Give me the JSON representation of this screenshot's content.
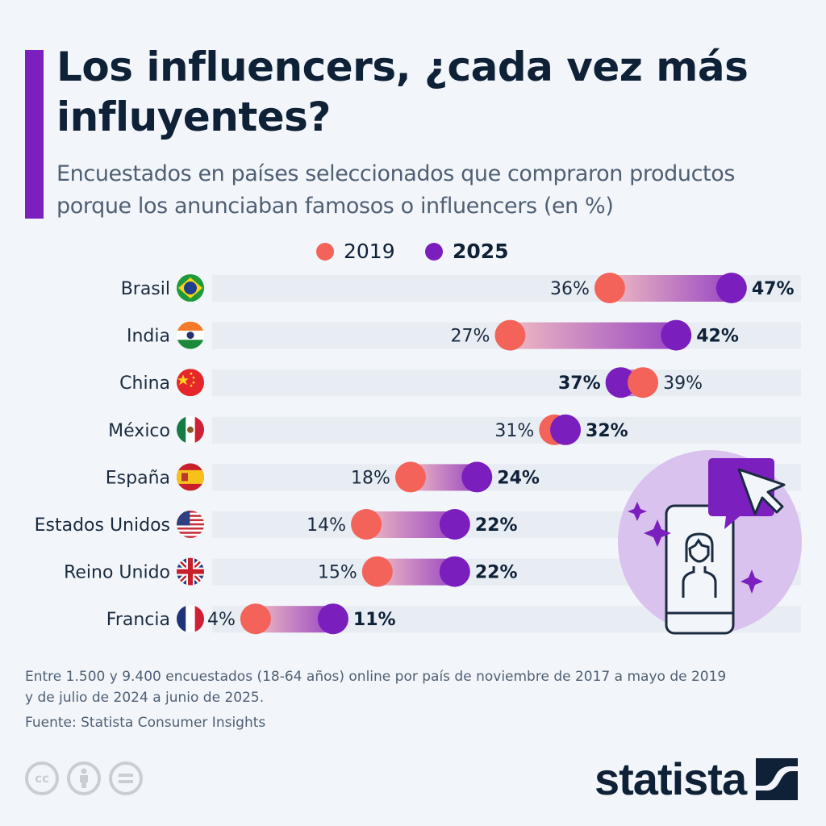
{
  "header": {
    "title": "Los influencers, ¿cada vez más influyentes?",
    "subtitle": "Encuestados en países seleccionados que compraron productos porque los anunciaban famosos o influencers (en %)"
  },
  "colors": {
    "accent": "#7B1FBF",
    "series_2019": "#F4635A",
    "series_2025": "#7A1FBE",
    "gradient_start": "#EEB9C2",
    "gradient_end": "#9A48C2",
    "track": "#E8EDF3",
    "text": "#0F2137"
  },
  "chart_data": {
    "type": "dumbbell",
    "title": "Los influencers, ¿cada vez más influyentes?",
    "subtitle": "Encuestados en países seleccionados que compraron productos porque los anunciaban famosos o influencers (en %)",
    "xlabel": "",
    "ylabel": "",
    "xlim": [
      0,
      53
    ],
    "unit": "%",
    "grid": false,
    "legend_position": "top-center",
    "categories": [
      "Brasil",
      "India",
      "China",
      "México",
      "España",
      "Estados Unidos",
      "Reino Unido",
      "Francia"
    ],
    "flags": [
      "brazil-flag-icon",
      "india-flag-icon",
      "china-flag-icon",
      "mexico-flag-icon",
      "spain-flag-icon",
      "usa-flag-icon",
      "uk-flag-icon",
      "france-flag-icon"
    ],
    "series": [
      {
        "name": "2019",
        "values": [
          36,
          27,
          39,
          31,
          18,
          14,
          15,
          4
        ]
      },
      {
        "name": "2025",
        "values": [
          47,
          42,
          37,
          32,
          24,
          22,
          22,
          11
        ]
      }
    ],
    "value_labels": {
      "2019": [
        "36%",
        "27%",
        "39%",
        "31%",
        "18%",
        "14%",
        "15%",
        "4%"
      ],
      "2025": [
        "47%",
        "42%",
        "37%",
        "32%",
        "24%",
        "22%",
        "22%",
        "11%"
      ]
    }
  },
  "legend": [
    {
      "label": "2019"
    },
    {
      "label": "2025"
    }
  ],
  "footer": {
    "note": "Entre 1.500 y 9.400 encuestados (18-64 años) online por país de noviembre de 2017 a mayo de 2019 y de julio de 2024 a junio de 2025.",
    "source": "Fuente: Statista Consumer Insights",
    "license_icons": [
      "creative-commons-icon",
      "attribution-icon",
      "no-derivatives-icon"
    ],
    "cc_label": "cc",
    "brand": "statista"
  }
}
